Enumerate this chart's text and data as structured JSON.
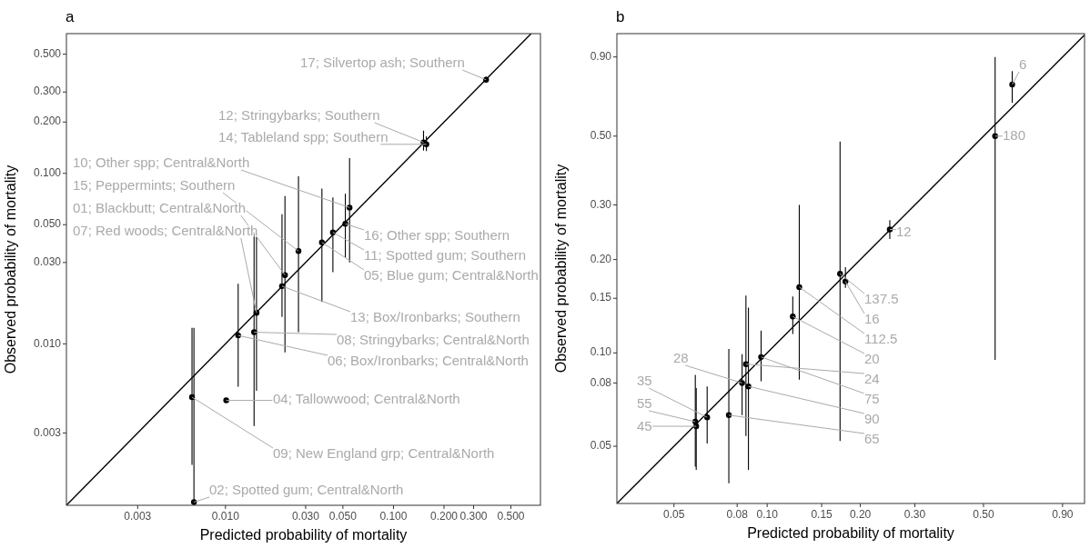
{
  "chart_data": [
    {
      "type": "scatter",
      "title": "a",
      "xlabel": "Predicted probability of mortality",
      "ylabel": "Observed probability of mortality",
      "log": "xy",
      "xlim": [
        0.00113,
        0.75
      ],
      "ylim": [
        0.00113,
        0.66
      ],
      "xticks": [
        {
          "value": 0.003,
          "label": "0.003"
        },
        {
          "value": 0.01,
          "label": "0.010"
        },
        {
          "value": 0.03,
          "label": "0.030"
        },
        {
          "value": 0.05,
          "label": "0.050"
        },
        {
          "value": 0.1,
          "label": "0.100"
        },
        {
          "value": 0.2,
          "label": "0.200"
        },
        {
          "value": 0.3,
          "label": "0.300"
        },
        {
          "value": 0.5,
          "label": "0.500"
        }
      ],
      "yticks": [
        {
          "value": 0.003,
          "label": "0.003"
        },
        {
          "value": 0.01,
          "label": "0.010"
        },
        {
          "value": 0.03,
          "label": "0.030"
        },
        {
          "value": 0.05,
          "label": "0.050"
        },
        {
          "value": 0.1,
          "label": "0.100"
        },
        {
          "value": 0.2,
          "label": "0.200"
        },
        {
          "value": 0.3,
          "label": "0.300"
        },
        {
          "value": 0.5,
          "label": "0.500"
        }
      ],
      "series": [
        {
          "type": "scatter",
          "marker": "circle",
          "color": "#000000",
          "x": [
            0.356,
            0.151,
            0.157,
            0.0548,
            0.0517,
            0.0436,
            0.0272,
            0.0226,
            0.0375,
            0.0153,
            0.0217,
            0.0119,
            0.0148,
            0.00632,
            0.0101,
            0.00649
          ],
          "values": [
            0.354,
            0.152,
            0.148,
            0.063,
            0.0506,
            0.0451,
            0.035,
            0.0253,
            0.0394,
            0.0152,
            0.0218,
            0.0112,
            0.0117,
            0.00487,
            0.00466,
            0.00118
          ],
          "errors": [
            [
              0.34,
              0.37
            ],
            [
              0.136,
              0.178
            ],
            [
              0.135,
              0.165
            ],
            [
              0.03,
              0.123
            ],
            [
              0.032,
              0.076
            ],
            [
              0.0263,
              0.0723
            ],
            [
              0.0117,
              0.096
            ],
            [
              0.0089,
              0.0736
            ],
            [
              0.0176,
              0.0815
            ],
            [
              0.0053,
              0.0442
            ],
            [
              0.0144,
              0.0576
            ],
            [
              0.0056,
              0.0225
            ],
            [
              0.0033,
              0.045
            ],
            [
              0.00195,
              0.0124
            ],
            null,
            [
              0.00113,
              0.0124
            ]
          ]
        },
        {
          "type": "line",
          "color": "#000000",
          "x": [
            0.00113,
            0.66
          ],
          "values": [
            0.00113,
            0.66
          ]
        }
      ],
      "annotations": [
        {
          "text": "17; Silvertop ash; Southern",
          "x": 0.356,
          "y": 0.354
        },
        {
          "text": "12; Stringybarks; Southern",
          "x": 0.151,
          "y": 0.152
        },
        {
          "text": "14; Tableland spp; Southern",
          "x": 0.157,
          "y": 0.148
        },
        {
          "text": "10; Other spp; Central&North",
          "x": 0.0548,
          "y": 0.063
        },
        {
          "text": "16; Other spp; Southern",
          "x": 0.0517,
          "y": 0.0506
        },
        {
          "text": "11; Spotted gum; Southern",
          "x": 0.0436,
          "y": 0.0451
        },
        {
          "text": "15; Peppermints; Southern",
          "x": 0.0272,
          "y": 0.035
        },
        {
          "text": "01; Blackbutt; Central&North",
          "x": 0.0226,
          "y": 0.0253
        },
        {
          "text": "05; Blue gum; Central&North",
          "x": 0.0375,
          "y": 0.0394
        },
        {
          "text": "07; Red woods; Central&North",
          "x": 0.0153,
          "y": 0.0152
        },
        {
          "text": "13; Box/Ironbarks; Southern",
          "x": 0.0217,
          "y": 0.0218
        },
        {
          "text": "06; Box/Ironbarks; Central&North",
          "x": 0.0119,
          "y": 0.0112
        },
        {
          "text": "08; Stringybarks; Central&North",
          "x": 0.0148,
          "y": 0.0117
        },
        {
          "text": "09; New England grp; Central&North",
          "x": 0.00632,
          "y": 0.00487
        },
        {
          "text": "04; Tallowwood; Central&North",
          "x": 0.0101,
          "y": 0.00466
        },
        {
          "text": "02; Spotted gum; Central&North",
          "x": 0.00649,
          "y": 0.00118
        }
      ]
    },
    {
      "type": "scatter",
      "title": "b",
      "xlabel": "Predicted probability of mortality",
      "ylabel": "Observed probability of mortality",
      "log": "xy",
      "xlim": [
        0.0327,
        1.06
      ],
      "ylim": [
        0.0327,
        1.07
      ],
      "xticks": [
        {
          "value": 0.05,
          "label": "0.05"
        },
        {
          "value": 0.08,
          "label": "0.08"
        },
        {
          "value": 0.1,
          "label": "0.10"
        },
        {
          "value": 0.15,
          "label": "0.15"
        },
        {
          "value": 0.2,
          "label": "0.20"
        },
        {
          "value": 0.3,
          "label": "0.30"
        },
        {
          "value": 0.5,
          "label": "0.50"
        },
        {
          "value": 0.9,
          "label": "0.90"
        }
      ],
      "yticks": [
        {
          "value": 0.05,
          "label": "0.05"
        },
        {
          "value": 0.08,
          "label": "0.08"
        },
        {
          "value": 0.1,
          "label": "0.10"
        },
        {
          "value": 0.15,
          "label": "0.15"
        },
        {
          "value": 0.2,
          "label": "0.20"
        },
        {
          "value": 0.3,
          "label": "0.30"
        },
        {
          "value": 0.5,
          "label": "0.50"
        },
        {
          "value": 0.9,
          "label": "0.90"
        }
      ],
      "series": [
        {
          "type": "scatter",
          "marker": "circle",
          "color": "#000000",
          "x": [
            0.619,
            0.545,
            0.249,
            0.172,
            0.179,
            0.127,
            0.121,
            0.0854,
            0.0956,
            0.083,
            0.087,
            0.0752,
            0.064,
            0.0586,
            0.059
          ],
          "values": [
            0.733,
            0.5,
            0.25,
            0.18,
            0.17,
            0.163,
            0.131,
            0.092,
            0.097,
            0.08,
            0.078,
            0.063,
            0.062,
            0.06,
            0.058
          ],
          "errors": [
            [
              0.64,
              0.81
            ],
            [
              0.095,
              0.9
            ],
            [
              0.233,
              0.268
            ],
            [
              0.052,
              0.48
            ],
            [
              0.162,
              0.189
            ],
            [
              0.082,
              0.3
            ],
            [
              0.115,
              0.152
            ],
            [
              0.054,
              0.153
            ],
            [
              0.081,
              0.118
            ],
            [
              0.063,
              0.099
            ],
            [
              0.042,
              0.14
            ],
            [
              0.038,
              0.103
            ],
            [
              0.051,
              0.078
            ],
            [
              0.043,
              0.085
            ],
            [
              0.042,
              0.077
            ]
          ]
        },
        {
          "type": "line",
          "color": "#000000",
          "x": [
            0.0327,
            1.06
          ],
          "values": [
            0.0327,
            1.06
          ]
        }
      ],
      "annotations": [
        {
          "text": "6",
          "x": 0.619,
          "y": 0.733
        },
        {
          "text": "180",
          "x": 0.545,
          "y": 0.5
        },
        {
          "text": "12",
          "x": 0.249,
          "y": 0.25
        },
        {
          "text": "137.5",
          "x": 0.172,
          "y": 0.18
        },
        {
          "text": "16",
          "x": 0.179,
          "y": 0.17
        },
        {
          "text": "112.5",
          "x": 0.127,
          "y": 0.163
        },
        {
          "text": "20",
          "x": 0.121,
          "y": 0.131
        },
        {
          "text": "24",
          "x": 0.0854,
          "y": 0.092
        },
        {
          "text": "75",
          "x": 0.0956,
          "y": 0.097
        },
        {
          "text": "28",
          "x": 0.083,
          "y": 0.08
        },
        {
          "text": "90",
          "x": 0.087,
          "y": 0.078
        },
        {
          "text": "65",
          "x": 0.0752,
          "y": 0.063
        },
        {
          "text": "35",
          "x": 0.064,
          "y": 0.062
        },
        {
          "text": "55",
          "x": 0.0586,
          "y": 0.06
        },
        {
          "text": "45",
          "x": 0.059,
          "y": 0.058
        }
      ]
    }
  ]
}
